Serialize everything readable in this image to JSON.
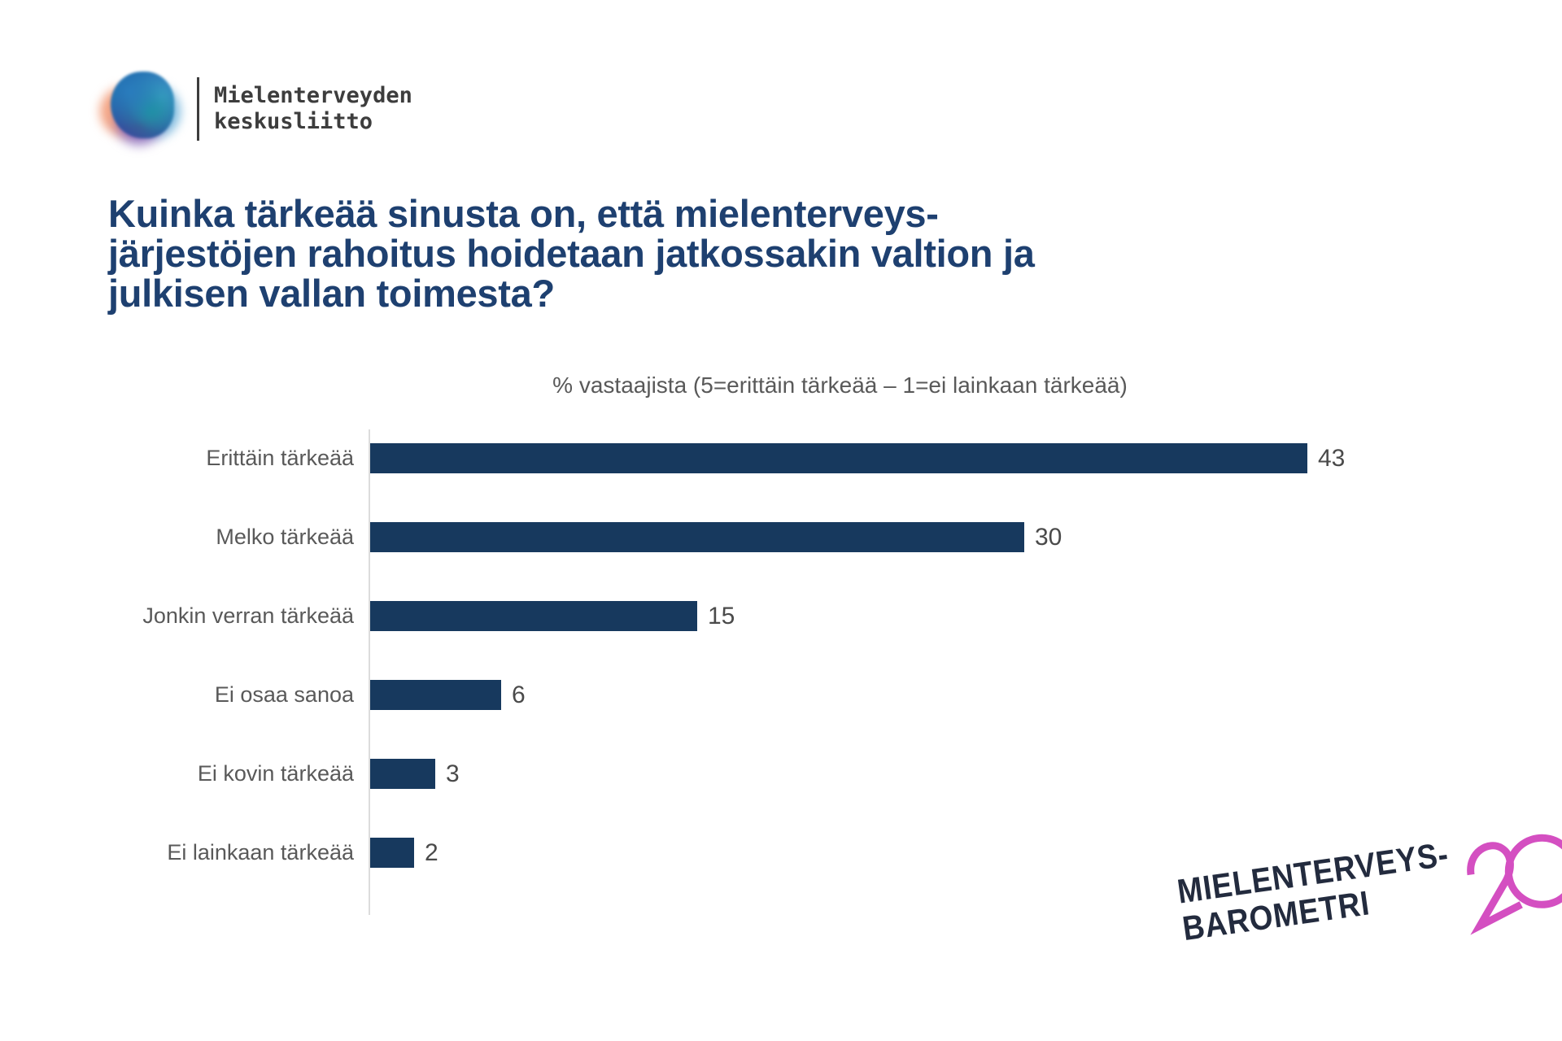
{
  "brand": {
    "name_line1": "Mielenterveyden",
    "name_line2": "keskusliitto"
  },
  "title": {
    "line1": "Kuinka tärkeää sinusta on, että mielenterveys-",
    "line2": "järjestöjen rahoitus hoidetaan jatkossakin valtion ja",
    "line3": "julkisen vallan toimesta?"
  },
  "chart_data": {
    "type": "bar",
    "orientation": "horizontal",
    "title": "% vastaajista (5=erittäin tärkeää – 1=ei lainkaan tärkeää)",
    "categories": [
      "Erittäin tärkeää",
      "Melko tärkeää",
      "Jonkin verran tärkeää",
      "Ei osaa sanoa",
      "Ei kovin tärkeää",
      "Ei lainkaan tärkeää"
    ],
    "values": [
      43,
      30,
      15,
      6,
      3,
      2
    ],
    "xlim": [
      0,
      43
    ],
    "grid": false,
    "legend": false,
    "value_labels": true,
    "bar_color": "#17395e",
    "label_color": "#595959",
    "value_color": "#4a4a4a",
    "axis_color": "#dcdcdc"
  },
  "footer_logo": {
    "line1": "MIELENTERVEYS-",
    "line2": "BAROMETRI",
    "number": "20",
    "number_color": "#d44fc1",
    "text_color": "#232b3e"
  },
  "colors": {
    "title_color": "#1e4070",
    "background": "#ffffff"
  }
}
